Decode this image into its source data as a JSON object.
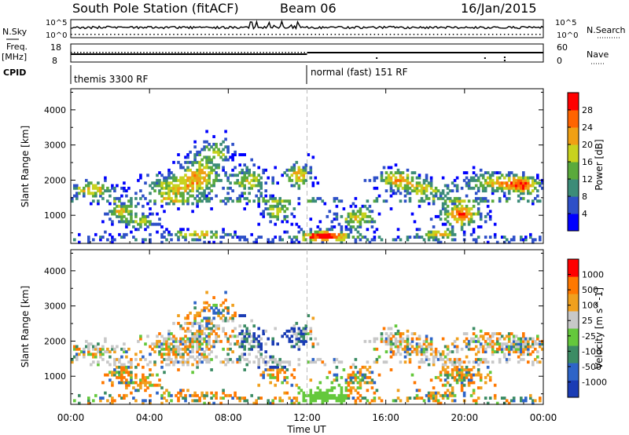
{
  "header": {
    "title": "South Pole Station (fitACF)",
    "beam": "Beam 06",
    "date": "16/Jan/2015"
  },
  "panels_top": {
    "nsky_label": "N.Sky",
    "nsky_ticks": [
      "10^5",
      "10^0"
    ],
    "nsearch_label": "N.Search",
    "freq_label_1": "Freq.",
    "freq_label_2": "[MHz]",
    "freq_ticks": [
      "18",
      "8"
    ],
    "nave_label": "Nave",
    "nave_ticks": [
      "60",
      "0"
    ],
    "cpid_label": "CPID",
    "cpid_1": "themis 3300 RF",
    "cpid_2": "normal (fast) 151 RF"
  },
  "chart_data": [
    {
      "type": "heatmap",
      "name": "power",
      "ylabel": "Slant Range [km]",
      "yticks": [
        1000,
        2000,
        3000,
        4000
      ],
      "ylim": [
        200,
        4600
      ],
      "colorbar_label": "Power [dB]",
      "colorbar_ticks": [
        "4",
        "8",
        "12",
        "16",
        "20",
        "24",
        "28"
      ],
      "colorbar_range": [
        0,
        30
      ],
      "colors": [
        "#0000ff",
        "#2e50c8",
        "#3c8c78",
        "#5aaa3c",
        "#c8d21e",
        "#f0a014",
        "#ff6400",
        "#ff0000"
      ]
    },
    {
      "type": "heatmap",
      "name": "velocity",
      "ylabel": "Slant Range [km]",
      "yticks": [
        1000,
        2000,
        3000,
        4000
      ],
      "ylim": [
        200,
        4600
      ],
      "colorbar_label": "Velocity [m s^-1]",
      "colorbar_ticks": [
        "1000",
        "500",
        "100",
        "25",
        "-25",
        "-100",
        "-500",
        "-1000"
      ],
      "colors": [
        "#1a3cb4",
        "#2d64c8",
        "#3c8c64",
        "#64c83c",
        "#c8c8c8",
        "#f0a01e",
        "#ff7800",
        "#ff0000"
      ]
    }
  ],
  "xaxis": {
    "label": "Time UT",
    "ticks": [
      "00:00",
      "04:00",
      "08:00",
      "12:00",
      "16:00",
      "20:00",
      "00:00"
    ],
    "range_hours": [
      0,
      24
    ],
    "mode_change_hour": 12
  }
}
